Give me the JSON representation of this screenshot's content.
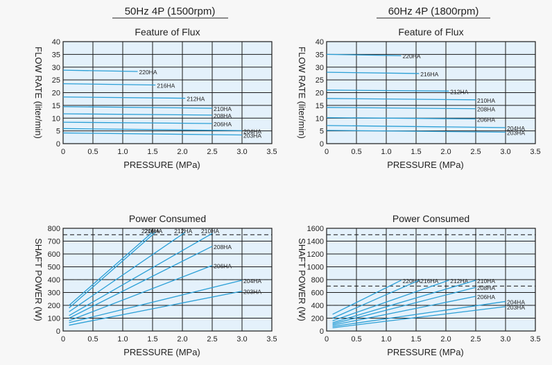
{
  "headings": [
    "50Hz 4P (1500rpm)",
    "60Hz 4P (1800rpm)"
  ],
  "colors": {
    "plot_bg": "#e4f1fb",
    "grid": "#1a1a1a",
    "line": "#2a9fd6",
    "frame": "#ffffff"
  },
  "chart_data": [
    {
      "type": "line",
      "title": "Feature of Flux",
      "xlabel": "PRESSURE (MPa)",
      "ylabel": "FLOW RATE (liter/min)",
      "xlim": [
        0,
        3.5
      ],
      "ylim": [
        0,
        40
      ],
      "xticks": [
        "0",
        "0.5",
        "1.0",
        "1.5",
        "2.0",
        "2.5",
        "3.0",
        "3.5"
      ],
      "yticks": [
        "0",
        "5",
        "10",
        "15",
        "20",
        "25",
        "30",
        "35",
        "40"
      ],
      "grid": true,
      "dashed_lines": [],
      "series": [
        {
          "name": "220HA",
          "x": [
            0,
            1.25
          ],
          "y": [
            28.8,
            28.3
          ]
        },
        {
          "name": "216HA",
          "x": [
            0,
            1.55
          ],
          "y": [
            23.5,
            23.0
          ]
        },
        {
          "name": "212HA",
          "x": [
            0,
            2.05
          ],
          "y": [
            18.3,
            17.8
          ]
        },
        {
          "name": "210HA",
          "x": [
            0,
            2.5
          ],
          "y": [
            14.5,
            13.9
          ]
        },
        {
          "name": "208HA",
          "x": [
            0,
            2.5
          ],
          "y": [
            11.7,
            11.2
          ]
        },
        {
          "name": "206HA",
          "x": [
            0,
            2.5
          ],
          "y": [
            8.4,
            7.9
          ]
        },
        {
          "name": "204HA",
          "x": [
            0,
            3.0
          ],
          "y": [
            5.9,
            5.1
          ]
        },
        {
          "name": "203HA",
          "x": [
            0,
            3.0
          ],
          "y": [
            4.2,
            3.4
          ]
        }
      ]
    },
    {
      "type": "line",
      "title": "Feature of Flux",
      "xlabel": "PRESSURE (MPa)",
      "ylabel": "FLOW RATE (liter/min)",
      "xlim": [
        0,
        3.5
      ],
      "ylim": [
        0,
        40
      ],
      "xticks": [
        "0",
        "0.5",
        "1.0",
        "1.5",
        "2.0",
        "2.5",
        "3.0",
        "3.5"
      ],
      "yticks": [
        "0",
        "5",
        "10",
        "15",
        "20",
        "25",
        "30",
        "35",
        "40"
      ],
      "grid": true,
      "dashed_lines": [],
      "series": [
        {
          "name": "220HA",
          "x": [
            0,
            1.25
          ],
          "y": [
            35.0,
            34.5
          ]
        },
        {
          "name": "216HA",
          "x": [
            0,
            1.55
          ],
          "y": [
            28.0,
            27.5
          ]
        },
        {
          "name": "212HA",
          "x": [
            0,
            2.05
          ],
          "y": [
            21.0,
            20.6
          ]
        },
        {
          "name": "210HA",
          "x": [
            0,
            2.5
          ],
          "y": [
            17.7,
            17.2
          ]
        },
        {
          "name": "208HA",
          "x": [
            0,
            2.5
          ],
          "y": [
            14.2,
            13.7
          ]
        },
        {
          "name": "206HA",
          "x": [
            0,
            2.5
          ],
          "y": [
            10.2,
            9.7
          ]
        },
        {
          "name": "204HA",
          "x": [
            0,
            3.0
          ],
          "y": [
            7.1,
            6.3
          ]
        },
        {
          "name": "203HA",
          "x": [
            0,
            3.0
          ],
          "y": [
            5.2,
            4.5
          ]
        }
      ]
    },
    {
      "type": "line",
      "title": "Power Consumed",
      "xlabel": "PRESSURE (MPa)",
      "ylabel": "SHAFT POWER (W)",
      "xlim": [
        0,
        3.5
      ],
      "ylim": [
        0,
        800
      ],
      "xticks": [
        "0",
        "0.5",
        "1.0",
        "1.5",
        "2.0",
        "2.5",
        "3.0",
        "3.5"
      ],
      "yticks": [
        "0",
        "100",
        "200",
        "300",
        "400",
        "500",
        "600",
        "700",
        "800"
      ],
      "grid": true,
      "dashed_lines": [
        750,
        400
      ],
      "series": [
        {
          "name": "220HA",
          "x": [
            0.1,
            1.5
          ],
          "y": [
            200,
            770
          ]
        },
        {
          "name": "216HA",
          "x": [
            0.1,
            1.55
          ],
          "y": [
            180,
            770
          ]
        },
        {
          "name": "212HA",
          "x": [
            0.1,
            2.05
          ],
          "y": [
            150,
            770
          ]
        },
        {
          "name": "210HA",
          "x": [
            0.1,
            2.5
          ],
          "y": [
            120,
            760
          ]
        },
        {
          "name": "208HA",
          "x": [
            0.1,
            2.5
          ],
          "y": [
            100,
            660
          ]
        },
        {
          "name": "206HA",
          "x": [
            0.1,
            2.5
          ],
          "y": [
            80,
            510
          ]
        },
        {
          "name": "204HA",
          "x": [
            0.1,
            3.0
          ],
          "y": [
            65,
            395
          ]
        },
        {
          "name": "203HA",
          "x": [
            0.1,
            3.0
          ],
          "y": [
            45,
            310
          ]
        }
      ]
    },
    {
      "type": "line",
      "title": "Power Consumed",
      "xlabel": "PRESSURE (MPa)",
      "ylabel": "SHAFT POWER (W)",
      "xlim": [
        0,
        3.5
      ],
      "ylim": [
        0,
        1600
      ],
      "xticks": [
        "0",
        "0.5",
        "1.0",
        "1.5",
        "2.0",
        "2.5",
        "3.0",
        "3.5"
      ],
      "yticks": [
        "0",
        "200",
        "400",
        "600",
        "800",
        "1000",
        "1200",
        "1400",
        "1600"
      ],
      "grid": true,
      "dashed_lines": [
        1500,
        700,
        400
      ],
      "series": [
        {
          "name": "220HA",
          "x": [
            0.1,
            1.25
          ],
          "y": [
            260,
            790
          ]
        },
        {
          "name": "216HA",
          "x": [
            0.1,
            1.55
          ],
          "y": [
            200,
            790
          ]
        },
        {
          "name": "212HA",
          "x": [
            0.1,
            2.05
          ],
          "y": [
            160,
            790
          ]
        },
        {
          "name": "210HA",
          "x": [
            0.1,
            2.5
          ],
          "y": [
            130,
            790
          ]
        },
        {
          "name": "208HA",
          "x": [
            0.1,
            2.5
          ],
          "y": [
            110,
            680
          ]
        },
        {
          "name": "206HA",
          "x": [
            0.1,
            2.5
          ],
          "y": [
            90,
            540
          ]
        },
        {
          "name": "204HA",
          "x": [
            0.1,
            3.0
          ],
          "y": [
            70,
            460
          ]
        },
        {
          "name": "203HA",
          "x": [
            0.1,
            3.0
          ],
          "y": [
            50,
            380
          ]
        }
      ]
    }
  ]
}
